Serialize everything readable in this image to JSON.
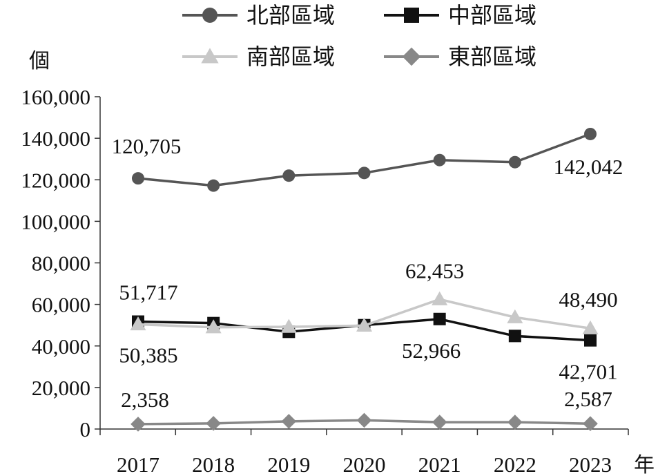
{
  "chart_data": {
    "type": "line",
    "y_unit": "個",
    "x_unit": "年",
    "categories": [
      "2017",
      "2018",
      "2019",
      "2020",
      "2021",
      "2022",
      "2023"
    ],
    "ylim": [
      0,
      160000
    ],
    "yticks": [
      0,
      20000,
      40000,
      60000,
      80000,
      100000,
      120000,
      140000,
      160000
    ],
    "ytick_labels": [
      "0",
      "20,000",
      "40,000",
      "60,000",
      "80,000",
      "100,000",
      "120,000",
      "140,000",
      "160,000"
    ],
    "grid": false,
    "legend_position": "top",
    "series": [
      {
        "name": "北部區域",
        "color": "#555555",
        "marker": "circle",
        "values": [
          120705,
          117200,
          122000,
          123300,
          129500,
          128500,
          142042
        ],
        "labels": [
          {
            "index": 0,
            "text": "120,705"
          },
          {
            "index": 6,
            "text": "142,042"
          }
        ]
      },
      {
        "name": "中部區域",
        "color": "#111111",
        "marker": "square",
        "values": [
          51717,
          51000,
          46800,
          50000,
          52966,
          44800,
          42701
        ],
        "labels": [
          {
            "index": 0,
            "text": "51,717"
          },
          {
            "index": 4,
            "text": "52,966"
          },
          {
            "index": 6,
            "text": "42,701"
          }
        ]
      },
      {
        "name": "南部區域",
        "color": "#c8c8c8",
        "marker": "triangle",
        "values": [
          50385,
          49000,
          49200,
          49800,
          62453,
          53800,
          48490
        ],
        "labels": [
          {
            "index": 0,
            "text": "50,385"
          },
          {
            "index": 4,
            "text": "62,453"
          },
          {
            "index": 6,
            "text": "48,490"
          }
        ]
      },
      {
        "name": "東部區域",
        "color": "#888888",
        "marker": "diamond",
        "values": [
          2358,
          2700,
          3700,
          4200,
          3300,
          3300,
          2587
        ],
        "labels": [
          {
            "index": 0,
            "text": "2,358"
          },
          {
            "index": 6,
            "text": "2,587"
          }
        ]
      }
    ]
  }
}
